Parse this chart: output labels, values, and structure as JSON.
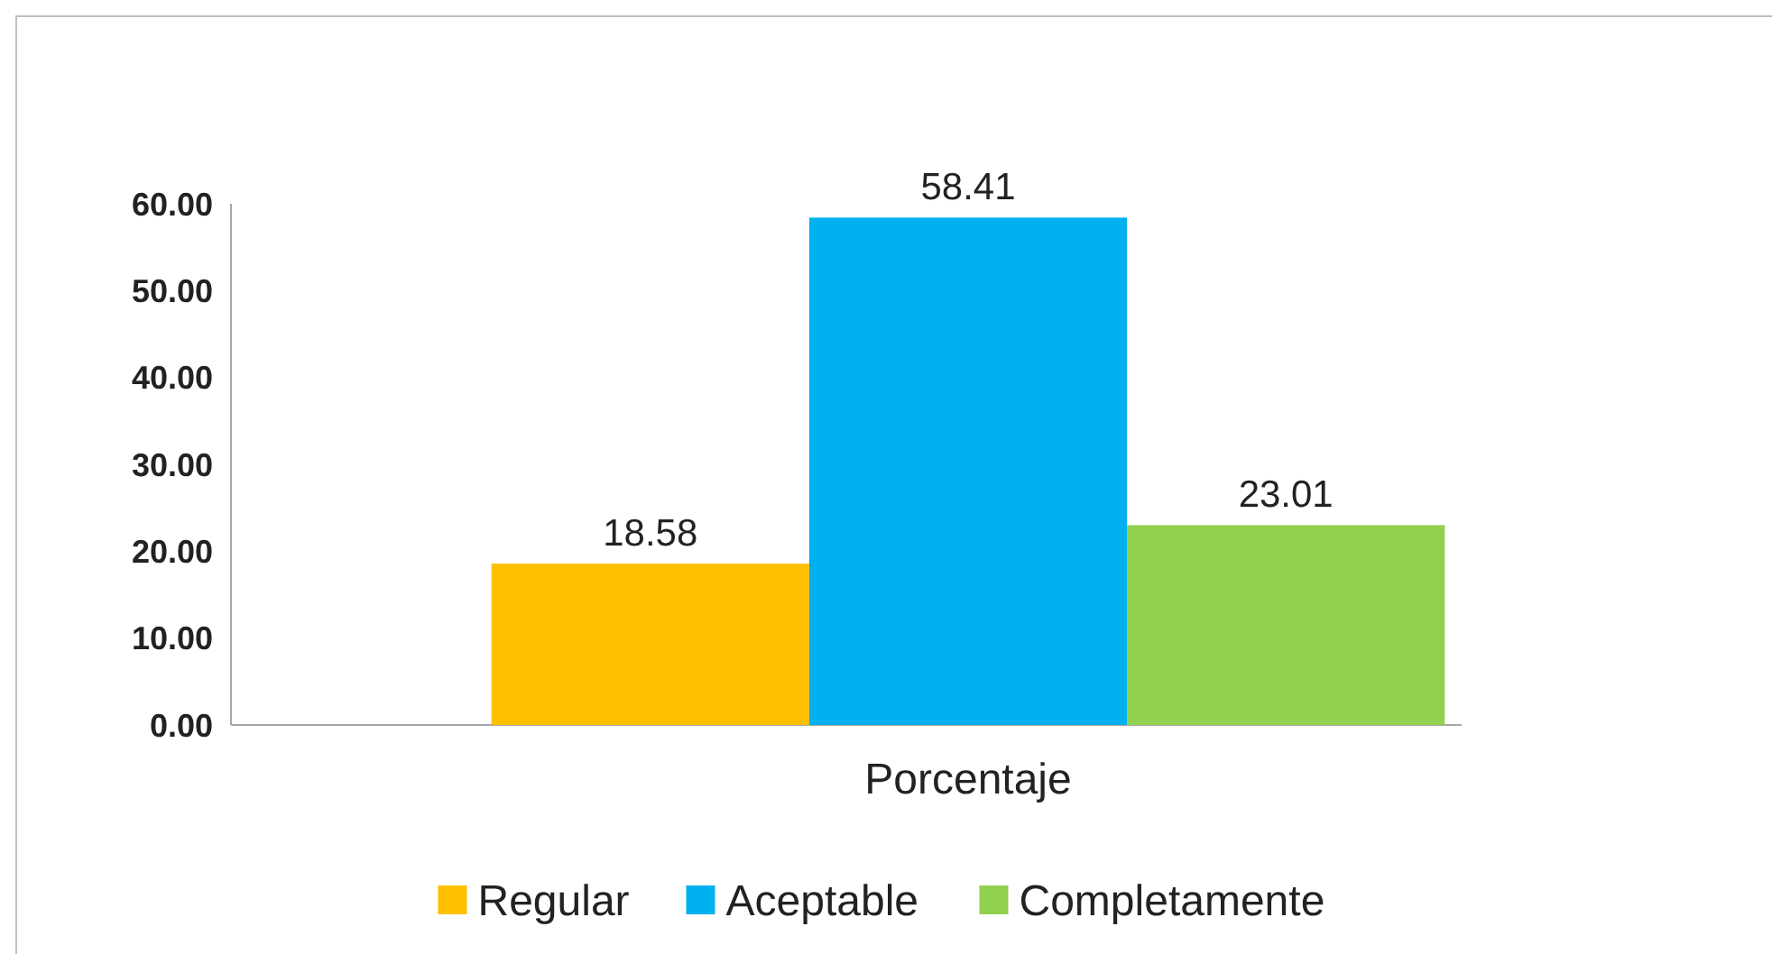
{
  "chart_data": {
    "type": "bar",
    "categories": [
      "Porcentaje"
    ],
    "series": [
      {
        "name": "Regular",
        "color": "#ffc000",
        "values": [
          18.58
        ]
      },
      {
        "name": "Aceptable",
        "color": "#00b0f0",
        "values": [
          58.41
        ]
      },
      {
        "name": "Completamente",
        "color": "#92d050",
        "values": [
          23.01
        ]
      }
    ],
    "ylim": [
      0,
      60
    ],
    "yticks": [
      {
        "value": 0,
        "label": "0.00"
      },
      {
        "value": 10,
        "label": "10.00"
      },
      {
        "value": 20,
        "label": "20.00"
      },
      {
        "value": 30,
        "label": "30.00"
      },
      {
        "value": 40,
        "label": "40.00"
      },
      {
        "value": 50,
        "label": "50.00"
      },
      {
        "value": 60,
        "label": "60.00"
      }
    ],
    "data_labels": true,
    "legend": "bottom",
    "grid": false
  }
}
